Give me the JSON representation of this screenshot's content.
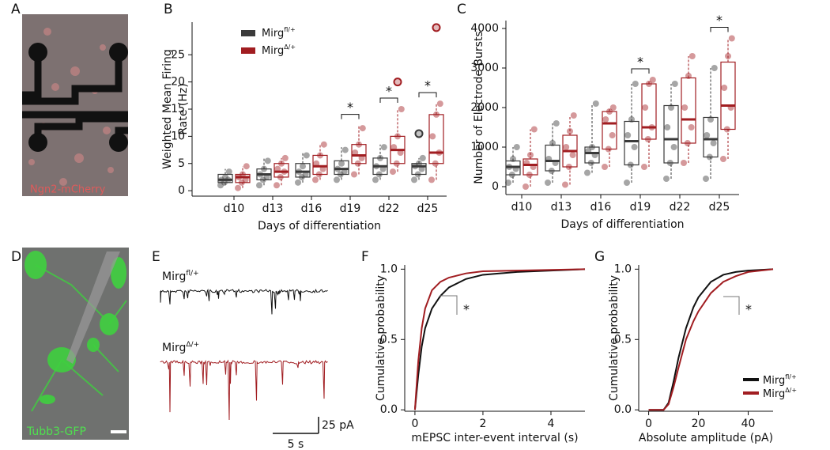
{
  "panel_labels": [
    "A",
    "B",
    "C",
    "D",
    "E",
    "F",
    "G"
  ],
  "image_captions": [
    "Ngn2-mCherry",
    "Tubb3-GFP"
  ],
  "traces": {
    "labels": [
      {
        "name": "Mirg",
        "sup": "fl/+"
      },
      {
        "name": "Mirg",
        "sup": "Δ/+"
      }
    ],
    "scale_y": "25 pA",
    "scale_x": "5 s"
  },
  "chart_data": [
    {
      "type": "box",
      "ylabel": [
        "Weighted Mean Firing",
        "Rate (Hz)"
      ],
      "xlabel": "Days of differentiation",
      "categories": [
        "d10",
        "d13",
        "d16",
        "d19",
        "d22",
        "d25"
      ],
      "ylim": [
        -1,
        31
      ],
      "yticks": [
        0,
        5,
        10,
        15,
        20,
        25
      ],
      "legend": "upper left",
      "series": [
        {
          "name": "Mirg",
          "sup": "fl/+",
          "color": "#3a3a3a",
          "boxes": [
            {
              "min": 1,
              "q1": 1.5,
              "median": 2,
              "q3": 3,
              "max": 4,
              "points": [
                1,
                1.5,
                2,
                2,
                2.5,
                3.5
              ]
            },
            {
              "min": 1,
              "q1": 2,
              "median": 3,
              "q3": 4,
              "max": 6,
              "points": [
                1,
                2,
                2.5,
                3,
                4,
                5.5
              ]
            },
            {
              "min": 1.5,
              "q1": 2.5,
              "median": 3.5,
              "q3": 5,
              "max": 7,
              "points": [
                1.5,
                2.5,
                3,
                3.5,
                4.5,
                6.5
              ]
            },
            {
              "min": 2,
              "q1": 3,
              "median": 4,
              "q3": 5.5,
              "max": 8,
              "points": [
                2,
                3,
                3.5,
                4,
                5,
                7.5
              ]
            },
            {
              "min": 2,
              "q1": 3,
              "median": 4.5,
              "q3": 6,
              "max": 8.5,
              "points": [
                2,
                3,
                4,
                4.5,
                6,
                8
              ]
            },
            {
              "min": 2,
              "q1": 3,
              "median": 4.5,
              "q3": 5,
              "max": 6,
              "points": [
                2,
                3,
                4,
                4.5,
                5,
                6
              ],
              "outliers": [
                10.5
              ]
            }
          ]
        },
        {
          "name": "Mirg",
          "sup": "Δ/+",
          "color": "#a11d21",
          "boxes": [
            {
              "min": 0.5,
              "q1": 1.5,
              "median": 2.5,
              "q3": 3,
              "max": 4.5,
              "points": [
                0.5,
                1.5,
                2,
                2.5,
                3,
                4.5
              ]
            },
            {
              "min": 1,
              "q1": 2.5,
              "median": 3.5,
              "q3": 5,
              "max": 6,
              "points": [
                1,
                2.5,
                3.5,
                4,
                5,
                6
              ]
            },
            {
              "min": 2,
              "q1": 3,
              "median": 4.5,
              "q3": 6.5,
              "max": 8.5,
              "points": [
                2,
                3,
                4,
                5,
                6.5,
                8.5
              ]
            },
            {
              "min": 3,
              "q1": 5,
              "median": 6.5,
              "q3": 8.5,
              "max": 12,
              "points": [
                3,
                5,
                6,
                7,
                8.5,
                11.5
              ]
            },
            {
              "min": 3.5,
              "q1": 5,
              "median": 7.5,
              "q3": 10,
              "max": 15,
              "points": [
                3.5,
                5,
                7,
                8,
                10,
                15
              ],
              "outliers": [
                20
              ]
            },
            {
              "min": 2,
              "q1": 5,
              "median": 7,
              "q3": 14,
              "max": 16,
              "points": [
                2,
                5,
                7,
                10,
                14,
                16
              ],
              "outliers": [
                30
              ]
            }
          ]
        }
      ],
      "annotations": [
        {
          "at": "d19",
          "text": "*"
        },
        {
          "at": "d22",
          "text": "*"
        },
        {
          "at": "d25",
          "text": "*"
        }
      ]
    },
    {
      "type": "box",
      "ylabel": [
        "Number of Electrode Bursts"
      ],
      "xlabel": "Days of differentiation",
      "categories": [
        "d10",
        "d13",
        "d16",
        "d19",
        "d22",
        "d25"
      ],
      "ylim": [
        -200,
        4200
      ],
      "yticks": [
        0,
        1000,
        2000,
        3000,
        4000
      ],
      "series": [
        {
          "color": "#3a3a3a",
          "boxes": [
            {
              "min": 100,
              "q1": 300,
              "median": 500,
              "q3": 650,
              "max": 1000,
              "points": [
                100,
                300,
                450,
                500,
                700,
                1000
              ]
            },
            {
              "min": 100,
              "q1": 400,
              "median": 650,
              "q3": 1050,
              "max": 1600,
              "points": [
                100,
                400,
                600,
                700,
                1100,
                1600
              ]
            },
            {
              "min": 350,
              "q1": 600,
              "median": 850,
              "q3": 1000,
              "max": 2100,
              "points": [
                350,
                600,
                800,
                900,
                1000,
                2100
              ]
            },
            {
              "min": 100,
              "q1": 550,
              "median": 1150,
              "q3": 1650,
              "max": 2600,
              "points": [
                100,
                550,
                1000,
                1300,
                1700,
                2600
              ]
            },
            {
              "min": 200,
              "q1": 600,
              "median": 1200,
              "q3": 2050,
              "max": 2600,
              "points": [
                200,
                600,
                1000,
                1500,
                2000,
                2600
              ]
            },
            {
              "min": 200,
              "q1": 750,
              "median": 1200,
              "q3": 1750,
              "max": 3000,
              "points": [
                200,
                750,
                1100,
                1300,
                1700,
                3000
              ]
            }
          ]
        },
        {
          "color": "#a11d21",
          "boxes": [
            {
              "min": 0,
              "q1": 300,
              "median": 550,
              "q3": 700,
              "max": 1450,
              "points": [
                0,
                300,
                500,
                600,
                800,
                1450
              ]
            },
            {
              "min": 50,
              "q1": 500,
              "median": 900,
              "q3": 1300,
              "max": 1800,
              "points": [
                50,
                500,
                800,
                1000,
                1400,
                1800
              ]
            },
            {
              "min": 500,
              "q1": 950,
              "median": 1600,
              "q3": 1900,
              "max": 2000,
              "points": [
                500,
                950,
                1300,
                1700,
                1900,
                2000
              ]
            },
            {
              "min": 500,
              "q1": 1200,
              "median": 1500,
              "q3": 2600,
              "max": 2700,
              "points": [
                500,
                1200,
                1500,
                2000,
                2600,
                2700
              ]
            },
            {
              "min": 600,
              "q1": 1100,
              "median": 1700,
              "q3": 2750,
              "max": 3300,
              "points": [
                600,
                1100,
                1500,
                2000,
                2800,
                3300
              ]
            },
            {
              "min": 700,
              "q1": 1450,
              "median": 2050,
              "q3": 3150,
              "max": 3750,
              "points": [
                700,
                1450,
                2000,
                2500,
                3300,
                3750
              ]
            }
          ]
        }
      ],
      "annotations": [
        {
          "at": "d19",
          "text": "*"
        },
        {
          "at": "d25",
          "text": "*"
        }
      ]
    },
    {
      "type": "line",
      "xlabel": "mEPSC inter-event interval (s)",
      "ylabel": "Cumulative probability",
      "x": [
        0,
        0.1,
        0.2,
        0.3,
        0.5,
        0.75,
        1,
        1.5,
        2,
        3,
        4,
        5
      ],
      "xlim": [
        -0.3,
        5
      ],
      "xticks": [
        0,
        2,
        4
      ],
      "ylim": [
        -0.01,
        1.03
      ],
      "yticks": [
        {
          "value": 0,
          "label": "0.0"
        },
        {
          "value": 0.5,
          "label": "0.5"
        },
        {
          "value": 1,
          "label": "1.0"
        }
      ],
      "series": [
        {
          "color": "#111111",
          "values": [
            0,
            0.25,
            0.45,
            0.58,
            0.72,
            0.81,
            0.87,
            0.93,
            0.96,
            0.98,
            0.99,
            1.0
          ]
        },
        {
          "color": "#a11d21",
          "values": [
            0,
            0.35,
            0.58,
            0.72,
            0.85,
            0.91,
            0.94,
            0.97,
            0.985,
            0.99,
            0.995,
            1.0
          ]
        }
      ],
      "annotations": [
        {
          "text": "*"
        }
      ]
    },
    {
      "type": "line",
      "xlabel": "Absolute amplitude (pA)",
      "ylabel": "Cumulative probability",
      "x": [
        0,
        6,
        8,
        10,
        12,
        15,
        18,
        20,
        25,
        30,
        35,
        40,
        50
      ],
      "xlim": [
        -4,
        50
      ],
      "xticks": [
        0,
        20,
        40
      ],
      "ylim": [
        -0.01,
        1.03
      ],
      "yticks": [
        {
          "value": 0,
          "label": "0.0"
        },
        {
          "value": 0.5,
          "label": "0.5"
        },
        {
          "value": 1,
          "label": "1.0"
        }
      ],
      "legend": "lower right",
      "series": [
        {
          "name": "Mirg",
          "sup": "fl/+",
          "color": "#111111",
          "values": [
            0,
            0,
            0.05,
            0.2,
            0.37,
            0.58,
            0.73,
            0.8,
            0.91,
            0.96,
            0.98,
            0.99,
            1
          ]
        },
        {
          "name": "Mirg",
          "sup": "Δ/+",
          "color": "#a11d21",
          "values": [
            0,
            0,
            0.04,
            0.16,
            0.3,
            0.5,
            0.63,
            0.7,
            0.83,
            0.91,
            0.95,
            0.98,
            1
          ]
        }
      ],
      "annotations": [
        {
          "text": "*"
        }
      ]
    }
  ]
}
